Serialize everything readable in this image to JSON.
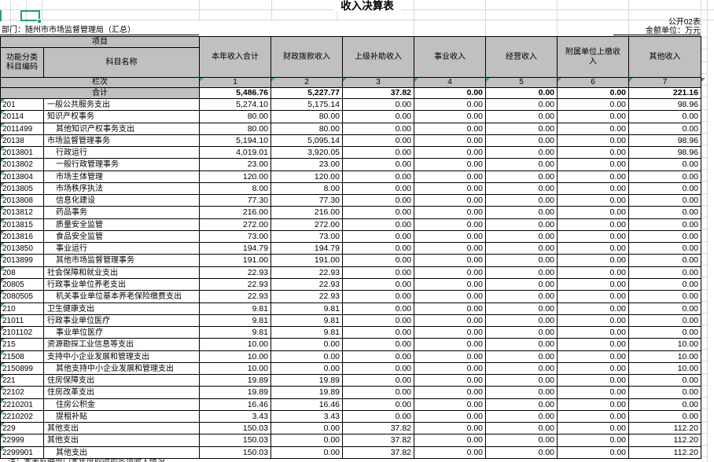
{
  "header": {
    "title": "收入决算表",
    "table_code": "公开02表",
    "unit_label": "金额单位：万元",
    "department": "部门：随州市市场监督管理局（汇总）"
  },
  "colors": {
    "header_bg": "#c0c0c0",
    "selection_green": "#21a366",
    "triangle_green": "#3aa655",
    "grid_light": "#d4d8dd"
  },
  "table": {
    "project_label": "项目",
    "code_header_line1": "功能分类",
    "code_header_line2": "科目编码",
    "name_header": "科目名称",
    "column_headers": [
      "本年收入合计",
      "财政拨款收入",
      "上级补助收入",
      "事业收入",
      "经营收入",
      "附属单位上缴收入",
      "其他收入"
    ],
    "lanci_label": "栏次",
    "column_numbers": [
      "1",
      "2",
      "3",
      "4",
      "5",
      "6",
      "7"
    ],
    "total_label": "合计",
    "total_values": [
      "5,486.76",
      "5,227.77",
      "37.82",
      "0.00",
      "0.00",
      "0.00",
      "221.16"
    ],
    "rows": [
      {
        "code": "201",
        "name": "一般公共服务支出",
        "indent": false,
        "values": [
          "5,274.10",
          "5,175.14",
          "0.00",
          "0.00",
          "0.00",
          "0.00",
          "98.96"
        ]
      },
      {
        "code": "20114",
        "name": "知识产权事务",
        "indent": false,
        "values": [
          "80.00",
          "80.00",
          "0.00",
          "0.00",
          "0.00",
          "0.00",
          "0.00"
        ]
      },
      {
        "code": "2011499",
        "name": "其他知识产权事务支出",
        "indent": true,
        "values": [
          "80.00",
          "80.00",
          "0.00",
          "0.00",
          "0.00",
          "0.00",
          "0.00"
        ]
      },
      {
        "code": "20138",
        "name": "市场监督管理事务",
        "indent": false,
        "values": [
          "5,194.10",
          "5,095.14",
          "0.00",
          "0.00",
          "0.00",
          "0.00",
          "98.96"
        ]
      },
      {
        "code": "2013801",
        "name": "行政运行",
        "indent": true,
        "values": [
          "4,019.01",
          "3,920.05",
          "0.00",
          "0.00",
          "0.00",
          "0.00",
          "98.96"
        ]
      },
      {
        "code": "2013802",
        "name": "一般行政管理事务",
        "indent": true,
        "values": [
          "23.00",
          "23.00",
          "0.00",
          "0.00",
          "0.00",
          "0.00",
          "0.00"
        ]
      },
      {
        "code": "2013804",
        "name": "市场主体管理",
        "indent": true,
        "values": [
          "120.00",
          "120.00",
          "0.00",
          "0.00",
          "0.00",
          "0.00",
          "0.00"
        ]
      },
      {
        "code": "2013805",
        "name": "市场秩序执法",
        "indent": true,
        "values": [
          "8.00",
          "8.00",
          "0.00",
          "0.00",
          "0.00",
          "0.00",
          "0.00"
        ]
      },
      {
        "code": "2013808",
        "name": "信息化建设",
        "indent": true,
        "values": [
          "77.30",
          "77.30",
          "0.00",
          "0.00",
          "0.00",
          "0.00",
          "0.00"
        ]
      },
      {
        "code": "2013812",
        "name": "药品事务",
        "indent": true,
        "values": [
          "216.00",
          "216.00",
          "0.00",
          "0.00",
          "0.00",
          "0.00",
          "0.00"
        ]
      },
      {
        "code": "2013815",
        "name": "质量安全监管",
        "indent": true,
        "values": [
          "272.00",
          "272.00",
          "0.00",
          "0.00",
          "0.00",
          "0.00",
          "0.00"
        ]
      },
      {
        "code": "2013816",
        "name": "食品安全监管",
        "indent": true,
        "values": [
          "73.00",
          "73.00",
          "0.00",
          "0.00",
          "0.00",
          "0.00",
          "0.00"
        ]
      },
      {
        "code": "2013850",
        "name": "事业运行",
        "indent": true,
        "values": [
          "194.79",
          "194.79",
          "0.00",
          "0.00",
          "0.00",
          "0.00",
          "0.00"
        ]
      },
      {
        "code": "2013899",
        "name": "其他市场监督管理事务",
        "indent": true,
        "values": [
          "191.00",
          "191.00",
          "0.00",
          "0.00",
          "0.00",
          "0.00",
          "0.00"
        ]
      },
      {
        "code": "208",
        "name": "社会保障和就业支出",
        "indent": false,
        "values": [
          "22.93",
          "22.93",
          "0.00",
          "0.00",
          "0.00",
          "0.00",
          "0.00"
        ]
      },
      {
        "code": "20805",
        "name": "行政事业单位养老支出",
        "indent": false,
        "values": [
          "22.93",
          "22.93",
          "0.00",
          "0.00",
          "0.00",
          "0.00",
          "0.00"
        ]
      },
      {
        "code": "2080505",
        "name": "机关事业单位基本养老保险缴费支出",
        "indent": true,
        "values": [
          "22.93",
          "22.93",
          "0.00",
          "0.00",
          "0.00",
          "0.00",
          "0.00"
        ]
      },
      {
        "code": "210",
        "name": "卫生健康支出",
        "indent": false,
        "values": [
          "9.81",
          "9.81",
          "0.00",
          "0.00",
          "0.00",
          "0.00",
          "0.00"
        ]
      },
      {
        "code": "21011",
        "name": "行政事业单位医疗",
        "indent": false,
        "values": [
          "9.81",
          "9.81",
          "0.00",
          "0.00",
          "0.00",
          "0.00",
          "0.00"
        ]
      },
      {
        "code": "2101102",
        "name": "事业单位医疗",
        "indent": true,
        "values": [
          "9.81",
          "9.81",
          "0.00",
          "0.00",
          "0.00",
          "0.00",
          "0.00"
        ]
      },
      {
        "code": "215",
        "name": "资源勘探工业信息等支出",
        "indent": false,
        "values": [
          "10.00",
          "0.00",
          "0.00",
          "0.00",
          "0.00",
          "0.00",
          "10.00"
        ]
      },
      {
        "code": "21508",
        "name": "支持中小企业发展和管理支出",
        "indent": false,
        "values": [
          "10.00",
          "0.00",
          "0.00",
          "0.00",
          "0.00",
          "0.00",
          "10.00"
        ]
      },
      {
        "code": "2150899",
        "name": "其他支持中小企业发展和管理支出",
        "indent": true,
        "values": [
          "10.00",
          "0.00",
          "0.00",
          "0.00",
          "0.00",
          "0.00",
          "10.00"
        ]
      },
      {
        "code": "221",
        "name": "住房保障支出",
        "indent": false,
        "values": [
          "19.89",
          "19.89",
          "0.00",
          "0.00",
          "0.00",
          "0.00",
          "0.00"
        ]
      },
      {
        "code": "22102",
        "name": "住房改革支出",
        "indent": false,
        "values": [
          "19.89",
          "19.89",
          "0.00",
          "0.00",
          "0.00",
          "0.00",
          "0.00"
        ]
      },
      {
        "code": "2210201",
        "name": "住房公积金",
        "indent": true,
        "values": [
          "16.46",
          "16.46",
          "0.00",
          "0.00",
          "0.00",
          "0.00",
          "0.00"
        ]
      },
      {
        "code": "2210202",
        "name": "提租补贴",
        "indent": true,
        "values": [
          "3.43",
          "3.43",
          "0.00",
          "0.00",
          "0.00",
          "0.00",
          "0.00"
        ]
      },
      {
        "code": "229",
        "name": "其他支出",
        "indent": false,
        "values": [
          "150.03",
          "0.00",
          "37.82",
          "0.00",
          "0.00",
          "0.00",
          "112.20"
        ]
      },
      {
        "code": "22999",
        "name": "其他支出",
        "indent": false,
        "values": [
          "150.03",
          "0.00",
          "37.82",
          "0.00",
          "0.00",
          "0.00",
          "112.20"
        ]
      },
      {
        "code": "2299901",
        "name": "其他支出",
        "indent": true,
        "values": [
          "150.03",
          "0.00",
          "37.82",
          "0.00",
          "0.00",
          "0.00",
          "112.20"
        ]
      }
    ]
  },
  "note_clipped": "注：本表反映部门本年度取得的各项收入情况。"
}
